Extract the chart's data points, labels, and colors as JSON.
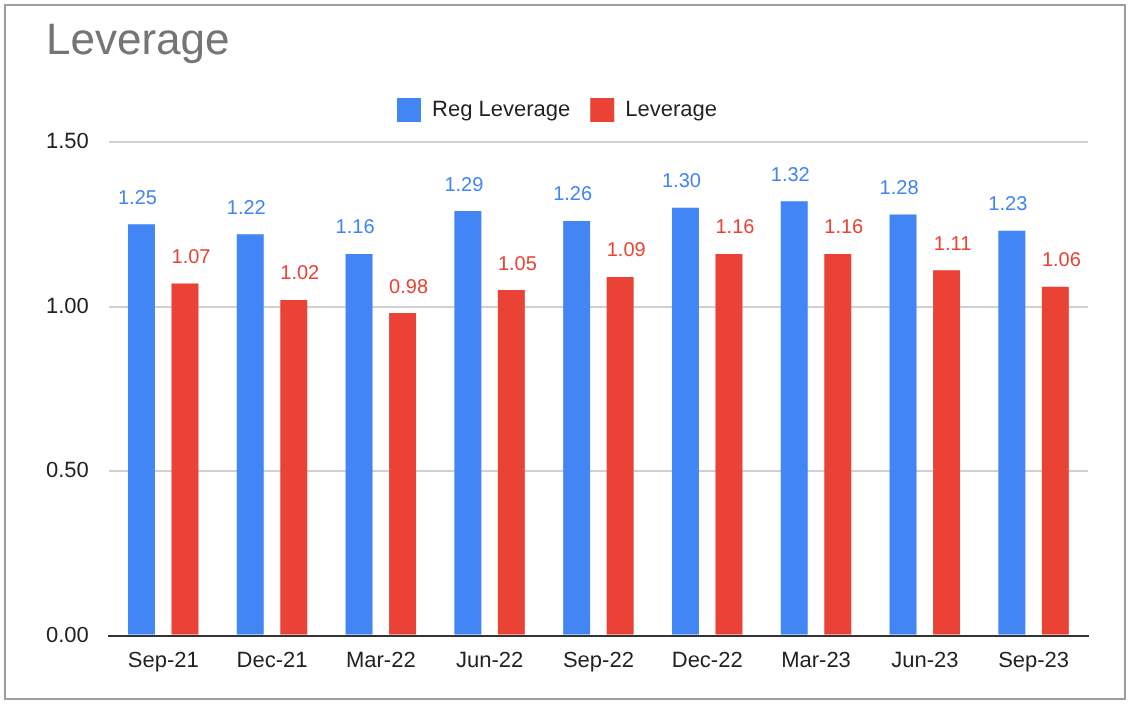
{
  "chart_data": {
    "type": "bar",
    "title": "Leverage",
    "categories": [
      "Sep-21",
      "Dec-21",
      "Mar-22",
      "Jun-22",
      "Sep-22",
      "Dec-22",
      "Mar-23",
      "Jun-23",
      "Sep-23"
    ],
    "series": [
      {
        "name": "Reg Leverage",
        "color": "#4285f4",
        "values": [
          1.25,
          1.22,
          1.16,
          1.29,
          1.26,
          1.3,
          1.32,
          1.28,
          1.23
        ],
        "value_labels": [
          "1.25",
          "1.22",
          "1.16",
          "1.29",
          "1.26",
          "1.30",
          "1.32",
          "1.28",
          "1.23"
        ]
      },
      {
        "name": "Leverage",
        "color": "#ea4335",
        "values": [
          1.07,
          1.02,
          0.98,
          1.05,
          1.09,
          1.16,
          1.16,
          1.11,
          1.06
        ],
        "value_labels": [
          "1.07",
          "1.02",
          "0.98",
          "1.05",
          "1.09",
          "1.16",
          "1.16",
          "1.11",
          "1.06"
        ]
      }
    ],
    "ylim": [
      0,
      1.5
    ],
    "yticks": [
      {
        "value": 0,
        "label": "0.00"
      },
      {
        "value": 0.5,
        "label": "0.50"
      },
      {
        "value": 1,
        "label": "1.00"
      },
      {
        "value": 1.5,
        "label": "1.50"
      }
    ],
    "grid": "y",
    "legend": "top"
  }
}
